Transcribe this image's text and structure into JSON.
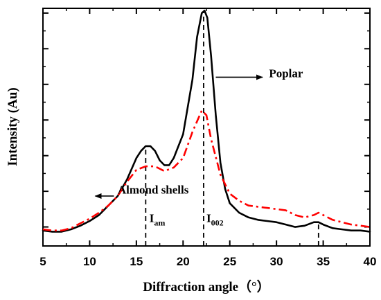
{
  "chart_data": {
    "type": "line",
    "xlabel": "Diffraction angle（°）",
    "ylabel": "Intensity (Au)",
    "xlim": [
      5,
      40
    ],
    "ylim": [
      0,
      100
    ],
    "x_ticks": [
      5,
      10,
      15,
      20,
      25,
      30,
      35,
      40
    ],
    "y_tick_labels_shown": false,
    "series": [
      {
        "name": "Poplar",
        "style": "solid",
        "color": "#000000",
        "points": [
          [
            5,
            6.5
          ],
          [
            6,
            6
          ],
          [
            7,
            6
          ],
          [
            8,
            7
          ],
          [
            9,
            8.5
          ],
          [
            10,
            10.5
          ],
          [
            11,
            13
          ],
          [
            12,
            17
          ],
          [
            13,
            21
          ],
          [
            14,
            28
          ],
          [
            15,
            37
          ],
          [
            15.5,
            40
          ],
          [
            16,
            42
          ],
          [
            16.5,
            42
          ],
          [
            17,
            40
          ],
          [
            17.5,
            36
          ],
          [
            18,
            34
          ],
          [
            18.5,
            34
          ],
          [
            19,
            37
          ],
          [
            20,
            47
          ],
          [
            21,
            70
          ],
          [
            21.5,
            88
          ],
          [
            22,
            98
          ],
          [
            22.3,
            99
          ],
          [
            22.6,
            96
          ],
          [
            23,
            80
          ],
          [
            23.5,
            55
          ],
          [
            24,
            35
          ],
          [
            24.5,
            24
          ],
          [
            25,
            18
          ],
          [
            26,
            14
          ],
          [
            27,
            12
          ],
          [
            28,
            11
          ],
          [
            29,
            10.5
          ],
          [
            30,
            10
          ],
          [
            31,
            9
          ],
          [
            32,
            8
          ],
          [
            33,
            8.5
          ],
          [
            34,
            10
          ],
          [
            34.5,
            10
          ],
          [
            35,
            9
          ],
          [
            36,
            7.5
          ],
          [
            37,
            7
          ],
          [
            38,
            6.5
          ],
          [
            39,
            6.5
          ],
          [
            40,
            6
          ]
        ]
      },
      {
        "name": "Almond shells",
        "style": "dashdot",
        "color": "#ff0000",
        "points": [
          [
            5,
            7
          ],
          [
            6,
            6.5
          ],
          [
            7,
            6.5
          ],
          [
            8,
            7.5
          ],
          [
            9,
            9.5
          ],
          [
            10,
            11.5
          ],
          [
            11,
            14
          ],
          [
            12,
            17
          ],
          [
            13,
            21
          ],
          [
            14,
            27
          ],
          [
            15,
            32
          ],
          [
            16,
            33.5
          ],
          [
            17,
            33.5
          ],
          [
            18,
            31.5
          ],
          [
            19,
            33
          ],
          [
            20,
            37
          ],
          [
            21,
            48
          ],
          [
            22,
            57
          ],
          [
            22.5,
            55
          ],
          [
            23,
            45
          ],
          [
            24,
            30
          ],
          [
            25,
            22
          ],
          [
            26,
            19
          ],
          [
            27,
            17
          ],
          [
            28,
            16.5
          ],
          [
            29,
            16
          ],
          [
            30,
            15.5
          ],
          [
            31,
            15
          ],
          [
            32,
            13
          ],
          [
            33,
            12
          ],
          [
            34,
            13
          ],
          [
            34.5,
            14
          ],
          [
            35,
            13
          ],
          [
            36,
            11
          ],
          [
            37,
            10
          ],
          [
            38,
            9
          ],
          [
            39,
            8.5
          ],
          [
            40,
            8
          ]
        ]
      }
    ],
    "reference_lines_x": [
      16,
      22.2,
      34.5
    ],
    "annotations": [
      {
        "name": "iam-label",
        "base": "I",
        "sub": "am",
        "x": 16.4,
        "y": 10
      },
      {
        "name": "i002-label",
        "base": "I",
        "sub": "002",
        "x": 22.5,
        "y": 10
      },
      {
        "name": "poplar-label",
        "text": "Poplar",
        "x": 29.2,
        "y": 71
      },
      {
        "name": "almond-label",
        "text": "Almond shells",
        "x": 13,
        "y": 22
      }
    ],
    "arrows": [
      {
        "name": "poplar-arrow",
        "from": [
          23.5,
          71
        ],
        "to": [
          28.5,
          71
        ]
      },
      {
        "name": "almond-arrow",
        "from": [
          12.6,
          21
        ],
        "to": [
          10.6,
          21
        ]
      }
    ]
  }
}
